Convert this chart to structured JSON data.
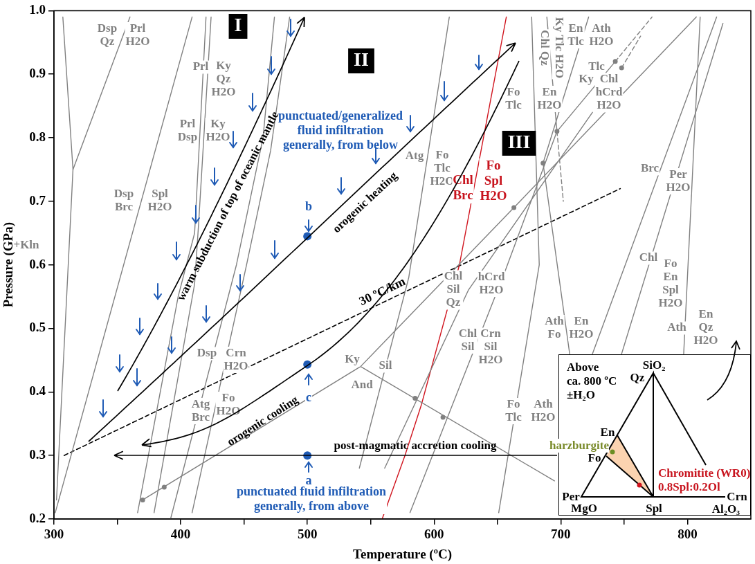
{
  "chart_data": [
    {
      "type": "line",
      "xlabel": "Temperature (ºC)",
      "ylabel": "Pressure (GPa)",
      "xlim": [
        300,
        850
      ],
      "ylim": [
        0.2,
        1.0
      ],
      "xticks": [
        300,
        {
          "value": 350,
          "label": null
        },
        400,
        {
          "value": 450,
          "label": null
        },
        500,
        {
          "value": 550,
          "label": null
        },
        600,
        {
          "value": 650,
          "label": null
        },
        700,
        {
          "value": 750,
          "label": null
        },
        800
      ],
      "yticks": [
        0.2,
        0.3,
        0.4,
        0.5,
        0.6,
        0.7,
        0.8,
        0.9,
        {
          "value": 1.0,
          "label": "1.0"
        }
      ],
      "grid": false,
      "legend": false,
      "marker": "none",
      "line_style": "solid",
      "series": [
        {
          "color": "#808080",
          "x": [
            307,
            315,
            302
          ],
          "values": [
            0.99,
            0.75,
            0.23
          ]
        },
        {
          "color": "#808080",
          "x": [
            360,
            315
          ],
          "values": [
            0.99,
            0.75
          ]
        },
        {
          "color": "#808080",
          "x": [
            409,
            301
          ],
          "values": [
            0.99,
            0.21
          ]
        },
        {
          "color": "#808080",
          "x": [
            420,
            411,
            398,
            366
          ],
          "values": [
            0.99,
            0.65,
            0.55,
            0.21
          ]
        },
        {
          "color": "#808080",
          "x": [
            424,
            414,
            411,
            379
          ],
          "values": [
            0.99,
            0.66,
            0.57,
            0.21
          ]
        },
        {
          "color": "#808080",
          "x": [
            474,
            465,
            444,
            392
          ],
          "values": [
            0.99,
            0.8,
            0.6,
            0.2
          ]
        },
        {
          "color": "#808080",
          "x": [
            486,
            471,
            452,
            409
          ],
          "values": [
            0.99,
            0.78,
            0.6,
            0.21
          ]
        },
        {
          "color": "#808080",
          "x": [
            612,
            580,
            541
          ],
          "values": [
            0.99,
            0.58,
            0.28
          ]
        },
        {
          "color": "#808080",
          "x": [
            370,
            542,
            663,
            807
          ],
          "values": [
            0.23,
            0.44,
            0.69,
            0.99
          ]
        },
        {
          "color": "#808080",
          "x": [
            542,
            695
          ],
          "values": [
            0.44,
            0.26
          ]
        },
        {
          "color": "#808080",
          "x": [
            581,
            656,
            697,
            743
          ],
          "values": [
            0.21,
            0.59,
            0.81,
            0.92
          ]
        },
        {
          "color": "#808080",
          "x": [
            561,
            627,
            725
          ],
          "values": [
            0.28,
            0.56,
            0.84
          ]
        },
        {
          "color": "#808080",
          "x": [
            810,
            797
          ],
          "values": [
            0.99,
            0.46
          ]
        },
        {
          "color": "#808080",
          "x": [
            823,
            725
          ],
          "values": [
            0.99,
            0.46
          ]
        },
        {
          "color": "#808080",
          "x": [
            828,
            748
          ],
          "values": [
            0.98,
            0.46
          ]
        },
        {
          "color": "#808080",
          "x": [
            722,
            686,
            707
          ],
          "values": [
            0.99,
            0.76,
            0.46
          ]
        },
        {
          "color": "#808080",
          "x": [
            677,
            683,
            651
          ],
          "values": [
            0.99,
            0.6,
            0.21
          ]
        },
        {
          "color": "#808080",
          "x": [
            689,
            697
          ],
          "values": [
            0.99,
            0.81
          ]
        },
        {
          "color": "#808080",
          "line_style": "dashed",
          "x": [
            697,
            702
          ],
          "values": [
            0.81,
            0.7
          ]
        },
        {
          "color": "#808080",
          "line_style": "dashed",
          "x": [
            743,
            772
          ],
          "values": [
            0.92,
            0.99
          ]
        },
        {
          "color": "#808080",
          "line_style": "dashed",
          "x": [
            748,
            763
          ],
          "values": [
            0.91,
            0.96
          ]
        },
        {
          "color": "#d0141e",
          "x": [
            559,
            577,
            590,
            620,
            657
          ],
          "values": [
            0.2,
            0.3,
            0.38,
            0.6,
            0.99
          ]
        },
        {
          "name": "30 ºC/km",
          "color": "#000000",
          "line_style": "dashed",
          "x": [
            308,
            747
          ],
          "values": [
            0.3,
            0.72
          ]
        },
        {
          "type": "scatter",
          "marker": "circle",
          "color": "#1f5bb5",
          "x": [
            500,
            500,
            500
          ],
          "values": [
            0.3,
            0.443,
            0.645
          ]
        },
        {
          "type": "scatter",
          "marker": "circle",
          "color": "#808080",
          "x": [
            370,
            387,
            585,
            607,
            663,
            686,
            697,
            743,
            748
          ],
          "values": [
            0.23,
            0.25,
            0.39,
            0.36,
            0.69,
            0.76,
            0.81,
            0.92,
            0.91
          ]
        }
      ],
      "annotations": [
        "Dsp\nQz",
        "Prl\nH2O",
        "Prl",
        "Ky\nQz\nH2O",
        "Prl\nDsp",
        "Ky\nH2O",
        "Dsp\nBrc",
        "Spl\nH2O",
        "Dsp",
        "Crn\nH2O",
        "Atg\nBrc",
        "Fo\nH2O",
        "Ky",
        "And",
        "Sil",
        "Atg",
        "Fo\nTlc\nH2O",
        "Chl\nSil\nQz",
        "hCrd\nH2O",
        "Chl\nSil",
        "Crn\nSil\nH2O",
        "Fo\nTlc",
        "Ath\nH2O",
        "Ath\nFo",
        "En\nH2O",
        "Fo\nTlc",
        "En\nH2O",
        "Chl Qz",
        "Ky Tlc H2O",
        "En\nTlc",
        "Ath\nH2O",
        "Tlc",
        "Ky",
        "Chl\nhCrd\nH2O",
        "Brc",
        "Per\nH2O",
        "Chl",
        "Fo\nEn\nSpl\nH2O",
        "Ath",
        "En\nQz\nH2O",
        "Chl\nBrc",
        "Fo\nSpl\nH2O",
        "punctuated/generalized\nfluid infiltration\ngenerally, from below",
        "punctuated fluid infiltration\ngenerally, from above",
        "b",
        "c",
        "a",
        "I",
        "II",
        "III",
        "+Kln",
        "warm subduction of top of oceanic mantle",
        "orogenic heating",
        "orogenic cooling",
        "post-magmatic accretion cooling"
      ]
    },
    {
      "type": "other",
      "annotations": [
        "Above\nca. 800 ºC\n±H₂O",
        "SiO₂",
        "Qz",
        "En",
        "harzburgite",
        "Fo",
        "Per",
        "MgO",
        "Spl",
        "Crn",
        "Al₂O₃",
        "Chromitite (WR0)\n0.8Spl:0.2Ol"
      ]
    }
  ]
}
